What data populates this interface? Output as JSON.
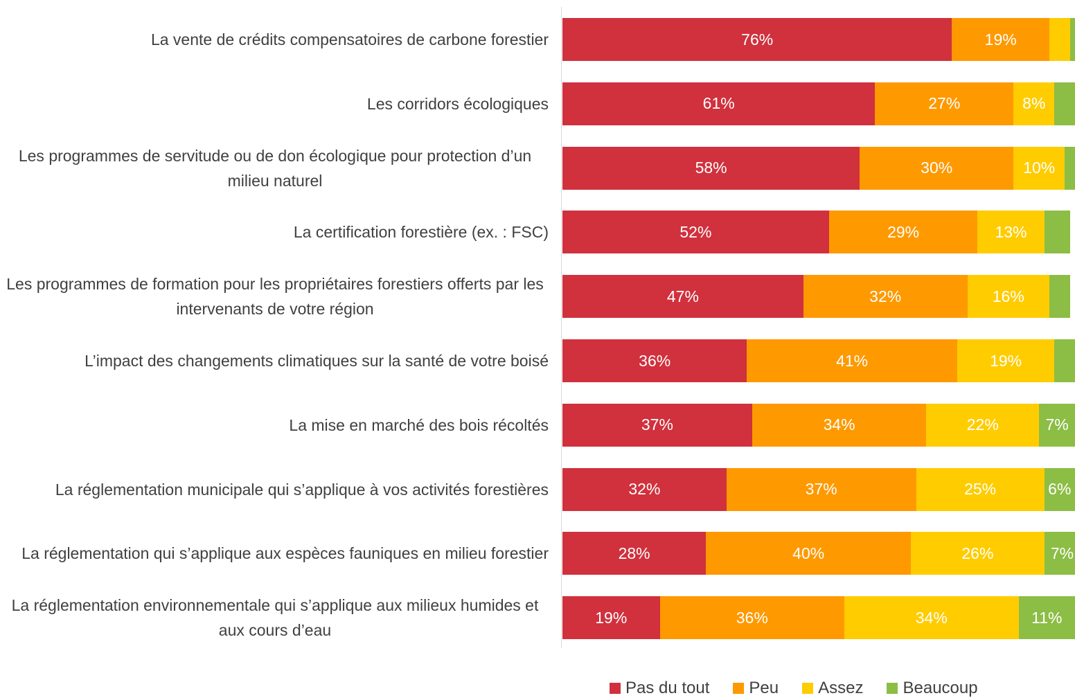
{
  "chart_data": {
    "type": "stacked-bar-horizontal",
    "categories": [
      "La vente de crédits compensatoires de carbone forestier",
      "Les corridors écologiques",
      "Les programmes de servitude ou de don écologique pour protection d’un milieu naturel",
      "La certification forestière (ex. : FSC)",
      "Les programmes de formation pour les propriétaires forestiers offerts par les intervenants de votre région",
      "L’impact des changements climatiques sur la santé de votre boisé",
      "La mise en marché des bois récoltés",
      "La réglementation municipale qui s’applique à vos activités forestières",
      "La réglementation qui s’applique aux espèces fauniques en milieu forestier",
      "La réglementation environnementale qui s’applique aux milieux humides et aux cours d’eau"
    ],
    "xlim": [
      0,
      100
    ],
    "series": [
      {
        "name": "Pas du tout",
        "color": "#d0313d",
        "values": [
          76,
          61,
          58,
          52,
          47,
          36,
          37,
          32,
          28,
          19
        ],
        "value_labels": [
          "76%",
          "61%",
          "58%",
          "52%",
          "47%",
          "36%",
          "37%",
          "32%",
          "28%",
          "19%"
        ]
      },
      {
        "name": "Peu",
        "color": "#fe9900",
        "values": [
          19,
          27,
          30,
          29,
          32,
          41,
          34,
          37,
          40,
          36
        ],
        "value_labels": [
          "19%",
          "27%",
          "30%",
          "29%",
          "32%",
          "41%",
          "34%",
          "37%",
          "40%",
          "36%"
        ]
      },
      {
        "name": "Assez",
        "color": "#ffcc00",
        "values": [
          4,
          8,
          10,
          13,
          16,
          19,
          22,
          25,
          26,
          34
        ],
        "value_labels": [
          null,
          "8%",
          "10%",
          "13%",
          "16%",
          "19%",
          "22%",
          "25%",
          "26%",
          "34%"
        ]
      },
      {
        "name": "Beaucoup",
        "color": "#8cbd45",
        "values": [
          1,
          4,
          2,
          5,
          4,
          4,
          7,
          6,
          7,
          11
        ],
        "value_labels": [
          null,
          null,
          null,
          null,
          null,
          null,
          "7%",
          "6%",
          "7%",
          "11%"
        ]
      }
    ]
  }
}
